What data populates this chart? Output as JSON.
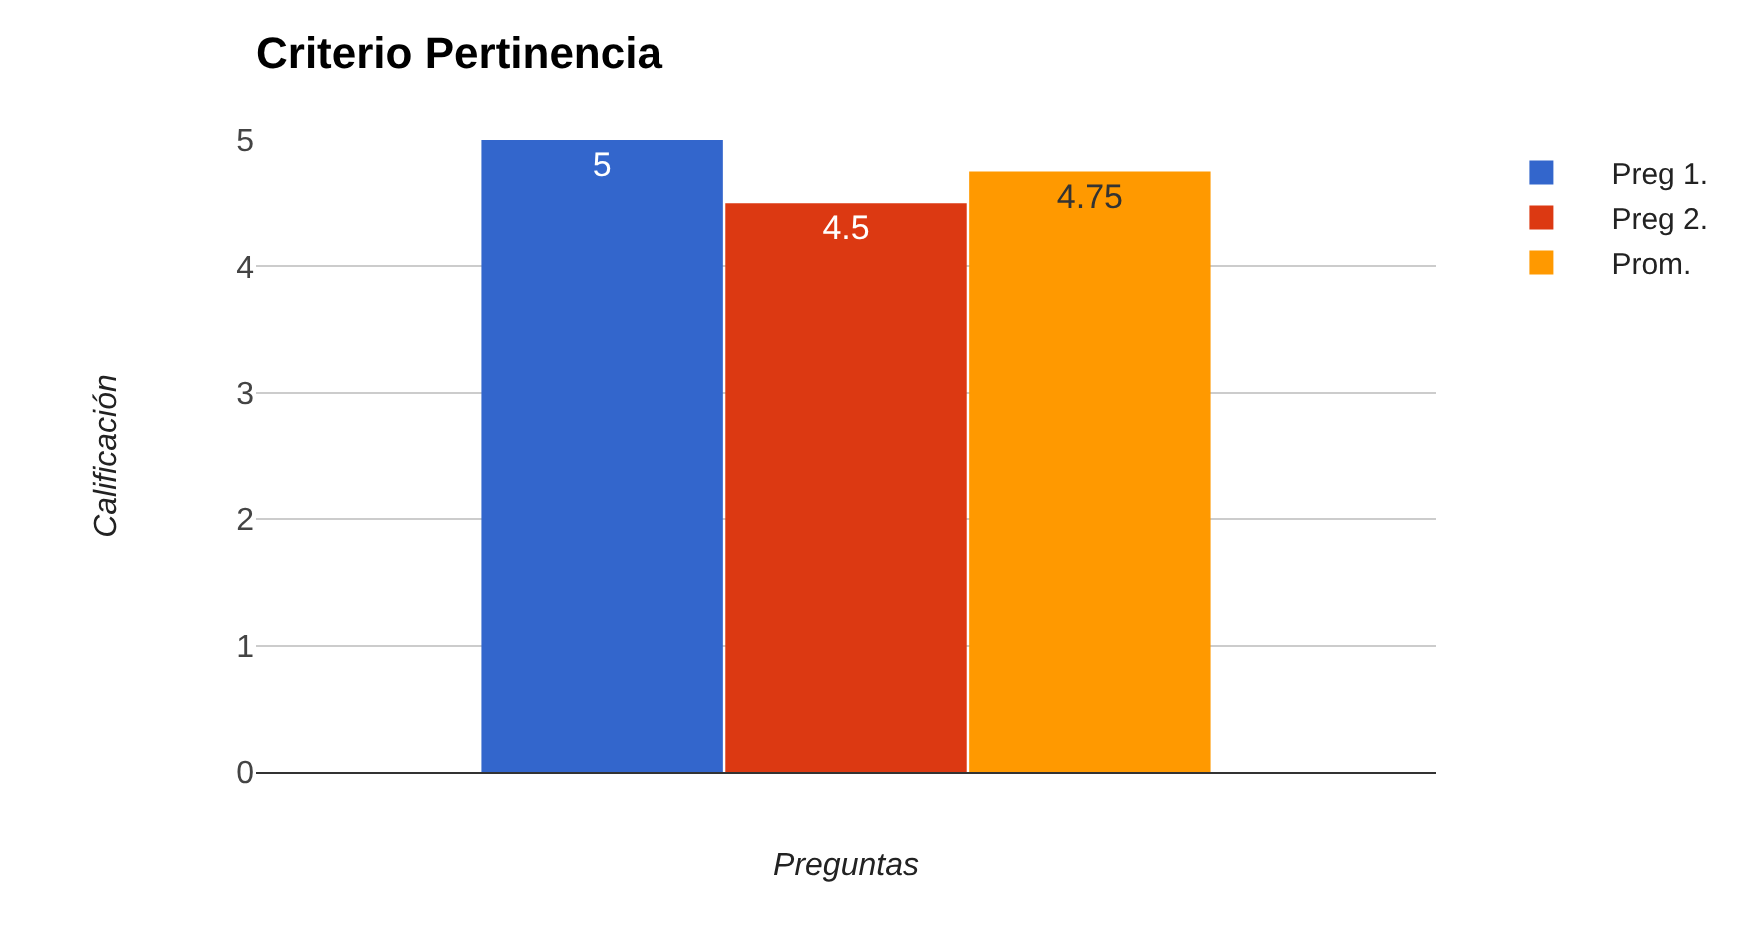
{
  "chart_data": {
    "type": "bar",
    "title": "Criterio Pertinencia",
    "xlabel": "Preguntas",
    "ylabel": "Calificación",
    "categories": [
      null
    ],
    "series": [
      {
        "name": "Preg 1.",
        "color": "#3366cc",
        "values": [
          5
        ]
      },
      {
        "name": "Preg 2.",
        "color": "#dc3912",
        "values": [
          4.5
        ]
      },
      {
        "name": "Prom.",
        "color": "#ff9900",
        "values": [
          4.75
        ]
      }
    ],
    "ylim": [
      0,
      5
    ],
    "yticks": [
      0,
      1,
      2,
      3,
      4,
      5
    ],
    "grid": "y",
    "legend": "top right",
    "data_labels": true,
    "tick_labels": "y"
  }
}
